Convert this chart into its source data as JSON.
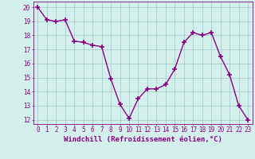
{
  "x": [
    0,
    1,
    2,
    3,
    4,
    5,
    6,
    7,
    8,
    9,
    10,
    11,
    12,
    13,
    14,
    15,
    16,
    17,
    18,
    19,
    20,
    21,
    22,
    23
  ],
  "y": [
    20.0,
    19.1,
    19.0,
    19.1,
    17.6,
    17.5,
    17.3,
    17.2,
    14.9,
    13.1,
    12.1,
    13.5,
    14.2,
    14.2,
    14.5,
    15.6,
    17.5,
    18.2,
    18.0,
    18.2,
    16.5,
    15.2,
    13.0,
    12.0
  ],
  "line_color": "#880088",
  "marker": "+",
  "marker_size": 4,
  "marker_linewidth": 1.2,
  "linewidth": 1.0,
  "xlabel": "Windchill (Refroidissement éolien,°C)",
  "xlabel_fontsize": 6.5,
  "ylabel_ticks": [
    12,
    13,
    14,
    15,
    16,
    17,
    18,
    19,
    20
  ],
  "xtick_labels": [
    "0",
    "1",
    "2",
    "3",
    "4",
    "5",
    "6",
    "7",
    "8",
    "9",
    "10",
    "11",
    "12",
    "13",
    "14",
    "15",
    "16",
    "17",
    "18",
    "19",
    "20",
    "21",
    "22",
    "23"
  ],
  "ylim": [
    11.7,
    20.4
  ],
  "xlim": [
    -0.5,
    23.5
  ],
  "bg_color": "#d4f0ec",
  "grid_color": "#aacfcb",
  "tick_fontsize": 5.5,
  "tick_color": "#880088",
  "spine_color": "#880088"
}
